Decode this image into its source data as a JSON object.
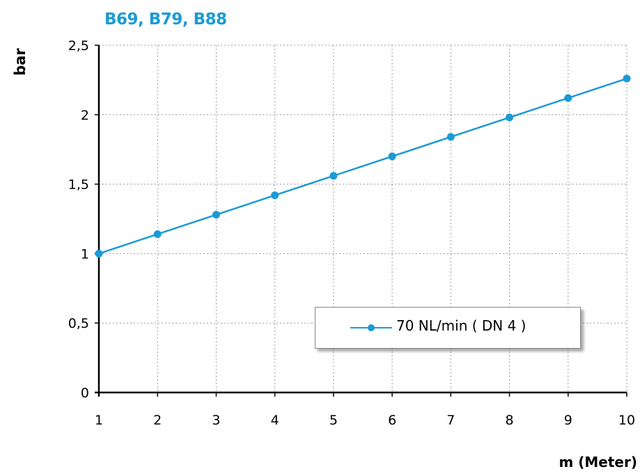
{
  "colors": {
    "title": "#1a9ad6",
    "series": "#1a9ad6",
    "grid": "#9a9a9a",
    "axis": "#000000"
  },
  "chart_data": {
    "type": "line",
    "title": "B69, B79, B88",
    "xlabel": "m (Meter)",
    "ylabel": "bar",
    "x": [
      1,
      2,
      3,
      4,
      5,
      6,
      7,
      8,
      9,
      10
    ],
    "xlim": [
      1,
      10
    ],
    "ylim": [
      0,
      2.5
    ],
    "x_ticks": [
      "1",
      "2",
      "3",
      "4",
      "5",
      "6",
      "7",
      "8",
      "9",
      "10"
    ],
    "y_ticks": [
      "0",
      "0,5",
      "1",
      "1,5",
      "2",
      "2,5"
    ],
    "grid": true,
    "grid_style": "dotted",
    "legend_position": "lower-right",
    "series": [
      {
        "name": "70  NL/min ( DN 4 )",
        "color": "#1a9ad6",
        "values": [
          1.0,
          1.14,
          1.28,
          1.42,
          1.56,
          1.7,
          1.84,
          1.98,
          2.12,
          2.26
        ]
      }
    ]
  }
}
